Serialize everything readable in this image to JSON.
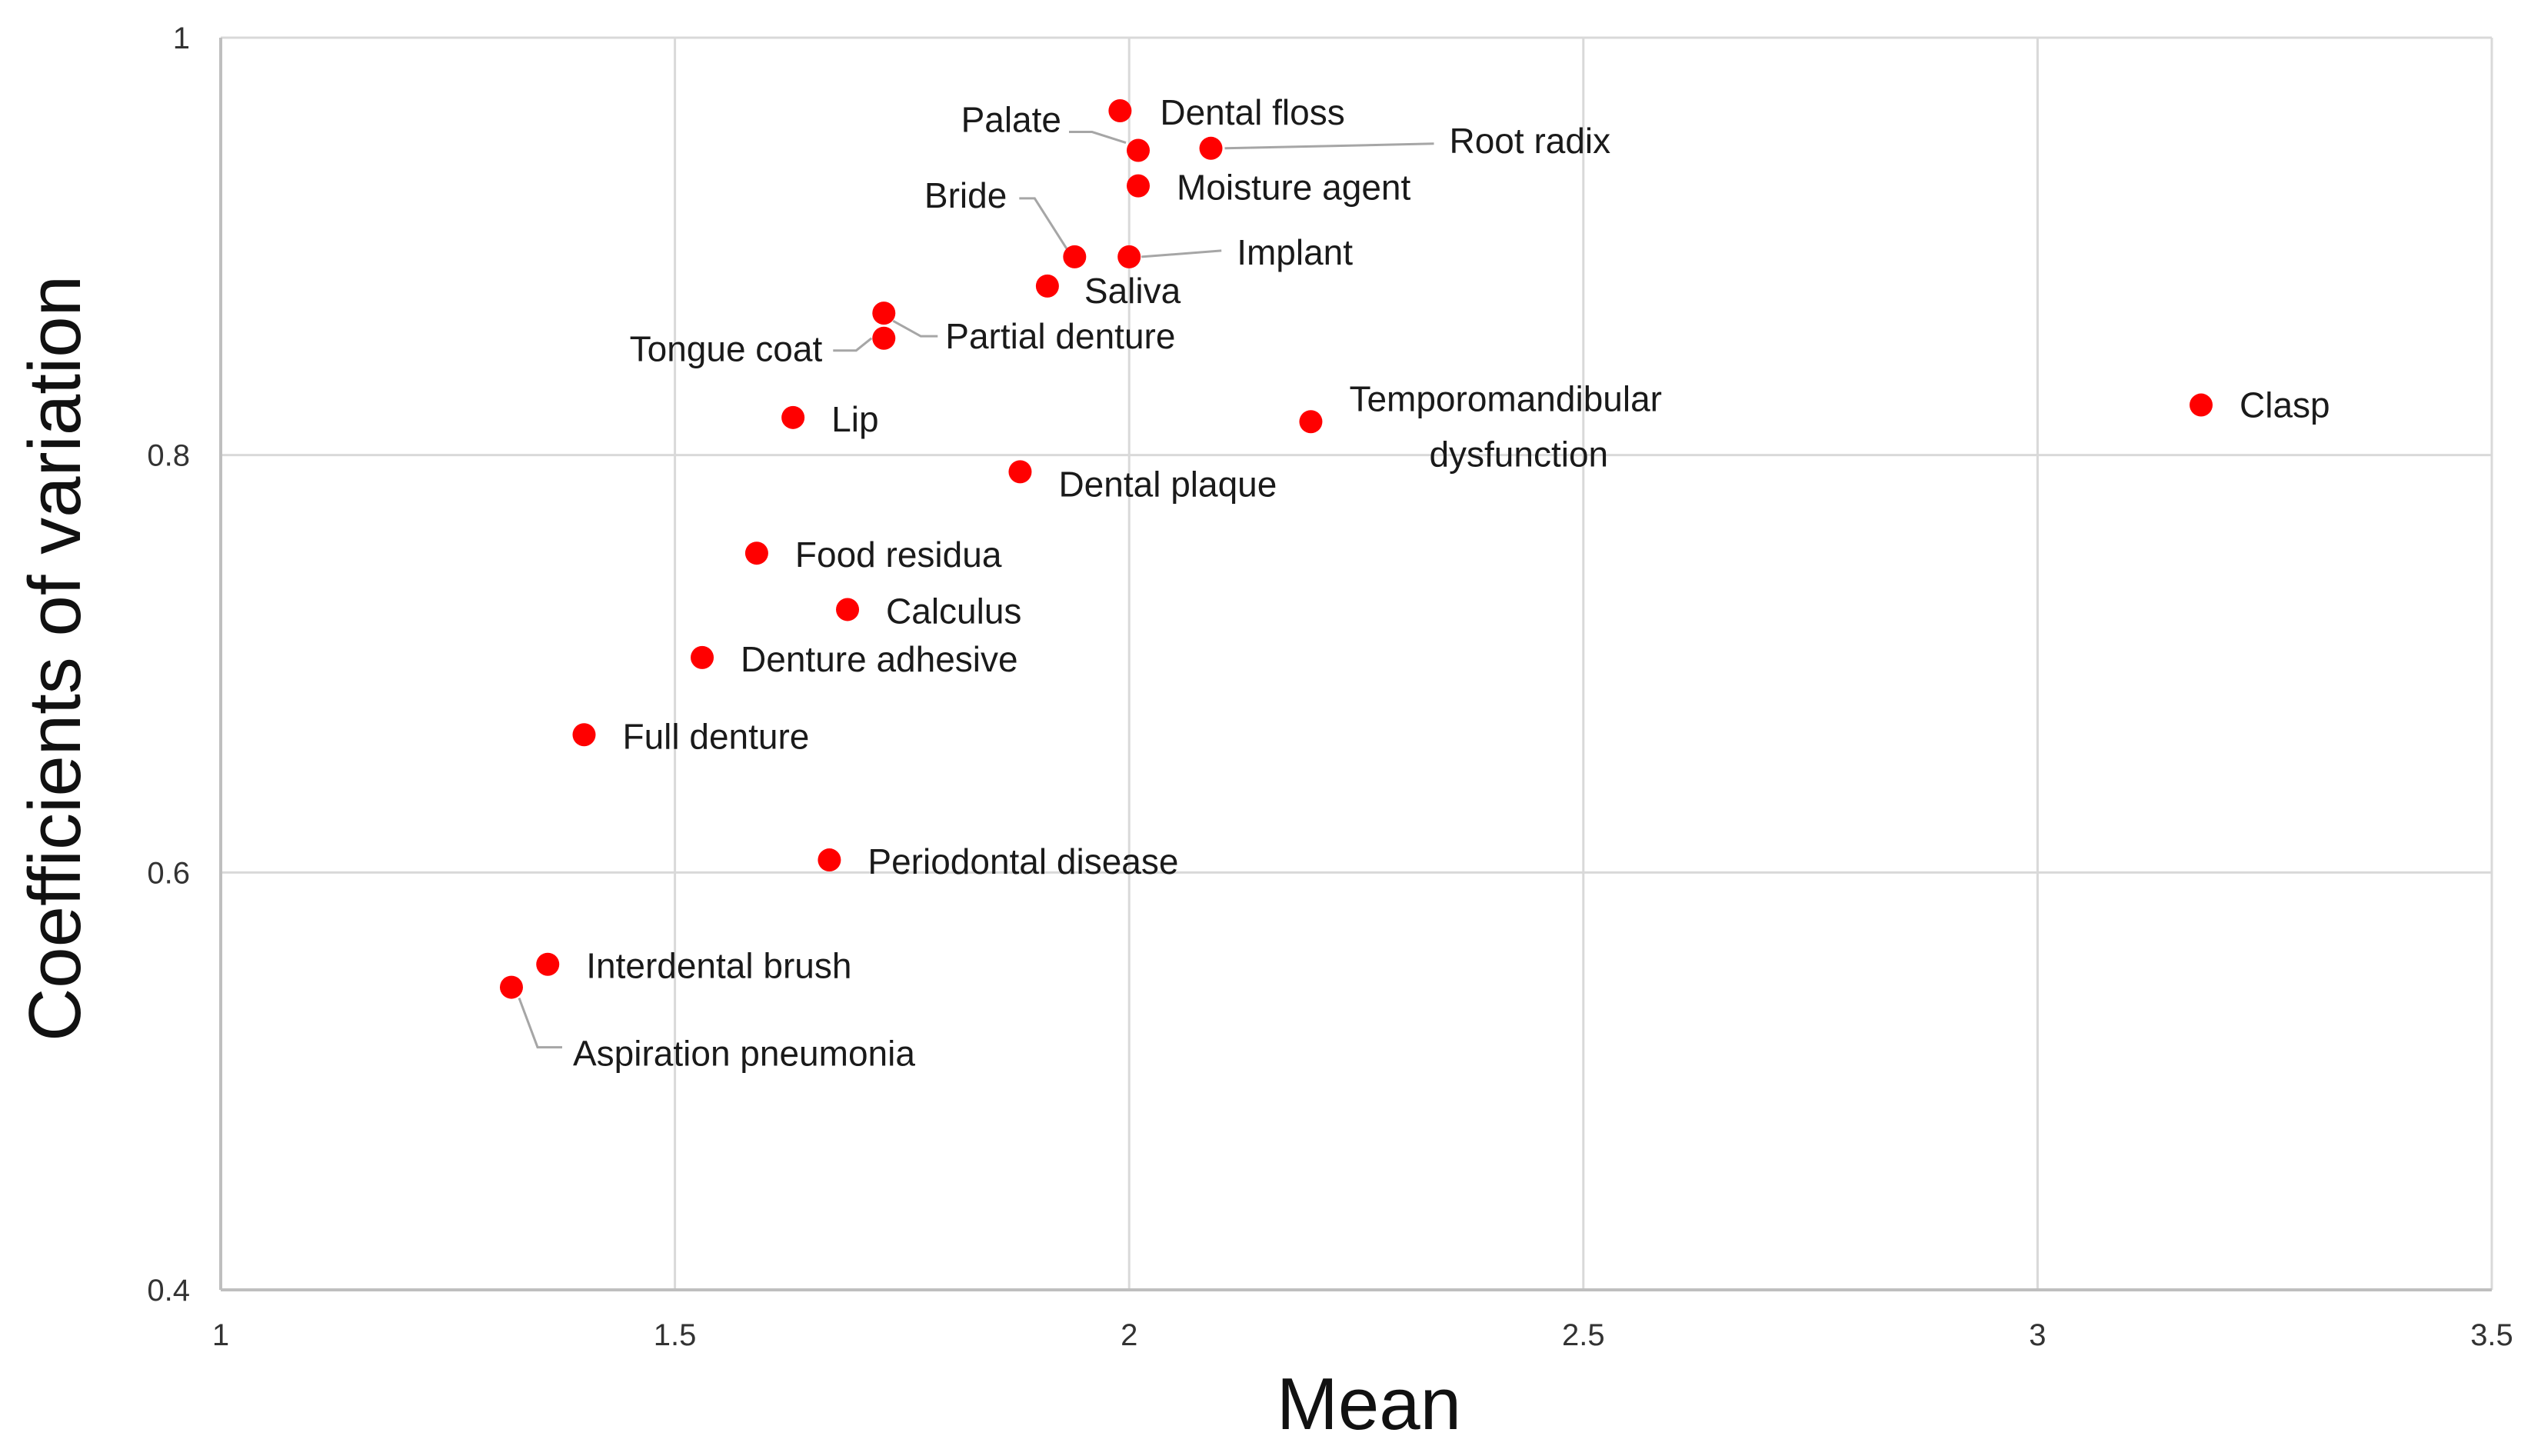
{
  "chart_data": {
    "type": "scatter",
    "title": "",
    "xlabel": "Mean",
    "ylabel": "Coefficients of variation",
    "xlim": [
      1,
      3.5
    ],
    "ylim": [
      0.4,
      1
    ],
    "x_ticks": [
      1,
      1.5,
      2,
      2.5,
      3,
      3.5
    ],
    "y_ticks": [
      0.4,
      0.6,
      0.8,
      1
    ],
    "x_tick_labels": [
      "1",
      "1.5",
      "2",
      "2.5",
      "3",
      "3.5"
    ],
    "y_tick_labels": [
      "0.4",
      "0.6",
      "0.8",
      "1"
    ],
    "grid": true,
    "marker_color": "#ff0000",
    "points": [
      {
        "label": "Dental floss",
        "x": 1.99,
        "y": 0.965
      },
      {
        "label": "Palate",
        "x": 2.01,
        "y": 0.946
      },
      {
        "label": "Root radix",
        "x": 2.09,
        "y": 0.947
      },
      {
        "label": "Moisture agent",
        "x": 2.01,
        "y": 0.929
      },
      {
        "label": "Bride",
        "x": 1.94,
        "y": 0.895
      },
      {
        "label": "Implant",
        "x": 2.0,
        "y": 0.895
      },
      {
        "label": "Saliva",
        "x": 1.91,
        "y": 0.881
      },
      {
        "label": "Tongue coat",
        "x": 1.73,
        "y": 0.856
      },
      {
        "label": "Partial denture",
        "x": 1.73,
        "y": 0.868
      },
      {
        "label": "Lip",
        "x": 1.63,
        "y": 0.818
      },
      {
        "label": "Temporomandibular dysfunction",
        "x": 2.2,
        "y": 0.816
      },
      {
        "label": "Clasp",
        "x": 3.18,
        "y": 0.824
      },
      {
        "label": "Dental plaque",
        "x": 1.88,
        "y": 0.792
      },
      {
        "label": "Food residua",
        "x": 1.59,
        "y": 0.753
      },
      {
        "label": "Calculus",
        "x": 1.69,
        "y": 0.726
      },
      {
        "label": "Denture adhesive",
        "x": 1.53,
        "y": 0.703
      },
      {
        "label": "Full denture",
        "x": 1.4,
        "y": 0.666
      },
      {
        "label": "Periodontal disease",
        "x": 1.67,
        "y": 0.606
      },
      {
        "label": "Interdental brush",
        "x": 1.36,
        "y": 0.556
      },
      {
        "label": "Aspiration pneumonia",
        "x": 1.32,
        "y": 0.545
      }
    ]
  }
}
